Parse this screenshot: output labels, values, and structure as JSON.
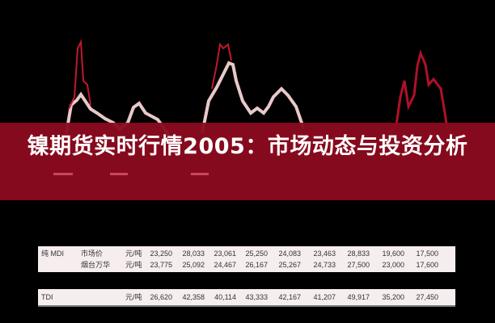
{
  "title": "镍期货实时行情2005：市场动态与投资分析",
  "colors": {
    "banner": "#8b0a1f",
    "strip": "#f6eeee",
    "line": "#c0182f"
  },
  "table": {
    "rows": [
      {
        "product": "纯 MDI",
        "item": "市场价",
        "unit": "元/吨",
        "values": [
          "23,250",
          "28,033",
          "23,061",
          "25,250",
          "24,083",
          "23,463",
          "28,833",
          "19,600",
          "17,500"
        ]
      },
      {
        "product": "",
        "item": "烟台万华",
        "unit": "元/吨",
        "values": [
          "23,775",
          "25,092",
          "24,467",
          "26,167",
          "25,267",
          "24,733",
          "27,500",
          "23,000",
          "17,600"
        ]
      },
      {
        "product": "TDI",
        "item": "",
        "unit": "元/吨",
        "values": [
          "26,620",
          "42,358",
          "40,114",
          "43,333",
          "42,167",
          "41,207",
          "49,917",
          "35,200",
          "27,450"
        ]
      }
    ]
  }
}
